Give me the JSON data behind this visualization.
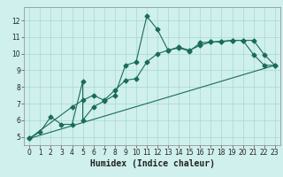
{
  "xlabel": "Humidex (Indice chaleur)",
  "bg_color": "#cff0ec",
  "grid_color": "#a8d8d0",
  "line_color": "#1a6b5a",
  "xlim": [
    -0.5,
    23.5
  ],
  "ylim": [
    4.5,
    12.8
  ],
  "xticks": [
    0,
    1,
    2,
    3,
    4,
    5,
    6,
    7,
    8,
    9,
    10,
    11,
    12,
    13,
    14,
    15,
    16,
    17,
    18,
    19,
    20,
    21,
    22,
    23
  ],
  "yticks": [
    5,
    6,
    7,
    8,
    9,
    10,
    11,
    12
  ],
  "line1_x": [
    0,
    1,
    2,
    3,
    4,
    5,
    5,
    6,
    7,
    8,
    9,
    10,
    11,
    12,
    13,
    14,
    15,
    16,
    17,
    18,
    19,
    20,
    21,
    22,
    23
  ],
  "line1_y": [
    4.9,
    5.3,
    6.2,
    5.75,
    5.75,
    8.35,
    6.0,
    6.8,
    7.15,
    7.5,
    9.3,
    9.5,
    12.25,
    11.45,
    10.2,
    10.35,
    10.15,
    10.65,
    10.7,
    10.75,
    10.8,
    10.8,
    9.95,
    9.3,
    9.3
  ],
  "line2_x": [
    0,
    4,
    5,
    6,
    7,
    8,
    9,
    10,
    11,
    12,
    13,
    14,
    15,
    16,
    17,
    18,
    19,
    20,
    21,
    22,
    23
  ],
  "line2_y": [
    4.9,
    6.8,
    7.2,
    7.5,
    7.2,
    7.8,
    8.4,
    8.5,
    9.5,
    10.0,
    10.2,
    10.4,
    10.2,
    10.5,
    10.7,
    10.7,
    10.8,
    10.8,
    10.8,
    9.95,
    9.3
  ],
  "line3_x": [
    0,
    23
  ],
  "line3_y": [
    4.9,
    9.3
  ],
  "marker_size": 2.5,
  "linewidth": 0.8,
  "xlabel_fontsize": 7,
  "tick_fontsize": 5.5
}
